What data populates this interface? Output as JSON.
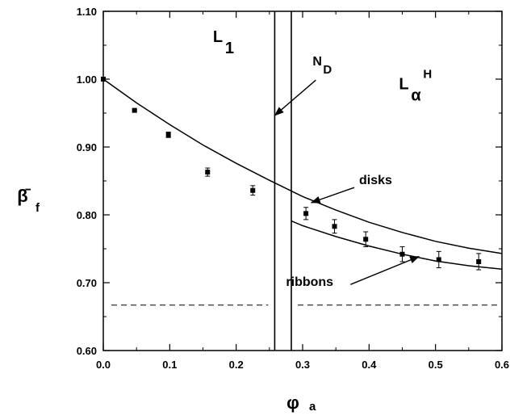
{
  "chart_data": {
    "type": "scatter",
    "xlabel": "φ",
    "xlabel_sub": "a",
    "ylabel": "β̄",
    "ylabel_sub": "f",
    "xlim": [
      0.0,
      0.6
    ],
    "ylim": [
      0.6,
      1.1
    ],
    "xticks": [
      "0.0",
      "0.1",
      "0.2",
      "0.3",
      "0.4",
      "0.5",
      "0.6"
    ],
    "yticks": [
      "0.60",
      "0.70",
      "0.80",
      "0.90",
      "1.00",
      "1.10"
    ],
    "grid": false,
    "points": [
      {
        "x": 0.0,
        "y": 1.0,
        "err": 0.0
      },
      {
        "x": 0.047,
        "y": 0.954,
        "err": 0.002
      },
      {
        "x": 0.098,
        "y": 0.918,
        "err": 0.004
      },
      {
        "x": 0.157,
        "y": 0.863,
        "err": 0.006
      },
      {
        "x": 0.225,
        "y": 0.836,
        "err": 0.007
      },
      {
        "x": 0.305,
        "y": 0.802,
        "err": 0.009
      },
      {
        "x": 0.348,
        "y": 0.783,
        "err": 0.01
      },
      {
        "x": 0.395,
        "y": 0.764,
        "err": 0.011
      },
      {
        "x": 0.45,
        "y": 0.742,
        "err": 0.011
      },
      {
        "x": 0.505,
        "y": 0.734,
        "err": 0.012
      },
      {
        "x": 0.565,
        "y": 0.731,
        "err": 0.012
      }
    ],
    "curves": [
      {
        "name": "disks",
        "x": [
          0.0,
          0.05,
          0.1,
          0.15,
          0.2,
          0.25,
          0.3,
          0.35,
          0.4,
          0.45,
          0.5,
          0.55,
          0.6
        ],
        "y": [
          1.0,
          0.965,
          0.933,
          0.903,
          0.876,
          0.851,
          0.827,
          0.807,
          0.789,
          0.774,
          0.761,
          0.751,
          0.743
        ]
      },
      {
        "name": "ribbons",
        "x": [
          0.283,
          0.3,
          0.35,
          0.4,
          0.45,
          0.5,
          0.55,
          0.6
        ],
        "y": [
          0.791,
          0.784,
          0.768,
          0.754,
          0.742,
          0.732,
          0.725,
          0.72
        ]
      }
    ],
    "reference_line": {
      "y": 0.667
    },
    "phase_boundaries": [
      0.258,
      0.283
    ],
    "regions": [
      {
        "label": "L",
        "sub": "1",
        "x": 0.165,
        "y": 1.055
      },
      {
        "label": "L",
        "sub": "α",
        "sup": "H",
        "x": 0.445,
        "y": 0.985
      }
    ],
    "annotations": [
      {
        "text": "N",
        "sub": "D",
        "text_x": 0.315,
        "text_y": 1.02,
        "arrow_to": [
          0.258,
          0.9465
        ]
      },
      {
        "text": "disks",
        "text_x": 0.385,
        "text_y": 0.845,
        "arrow_to": [
          0.313,
          0.818
        ]
      },
      {
        "text": "ribbons",
        "text_x": 0.275,
        "text_y": 0.695,
        "arrow_to": [
          0.475,
          0.7385
        ]
      }
    ]
  }
}
